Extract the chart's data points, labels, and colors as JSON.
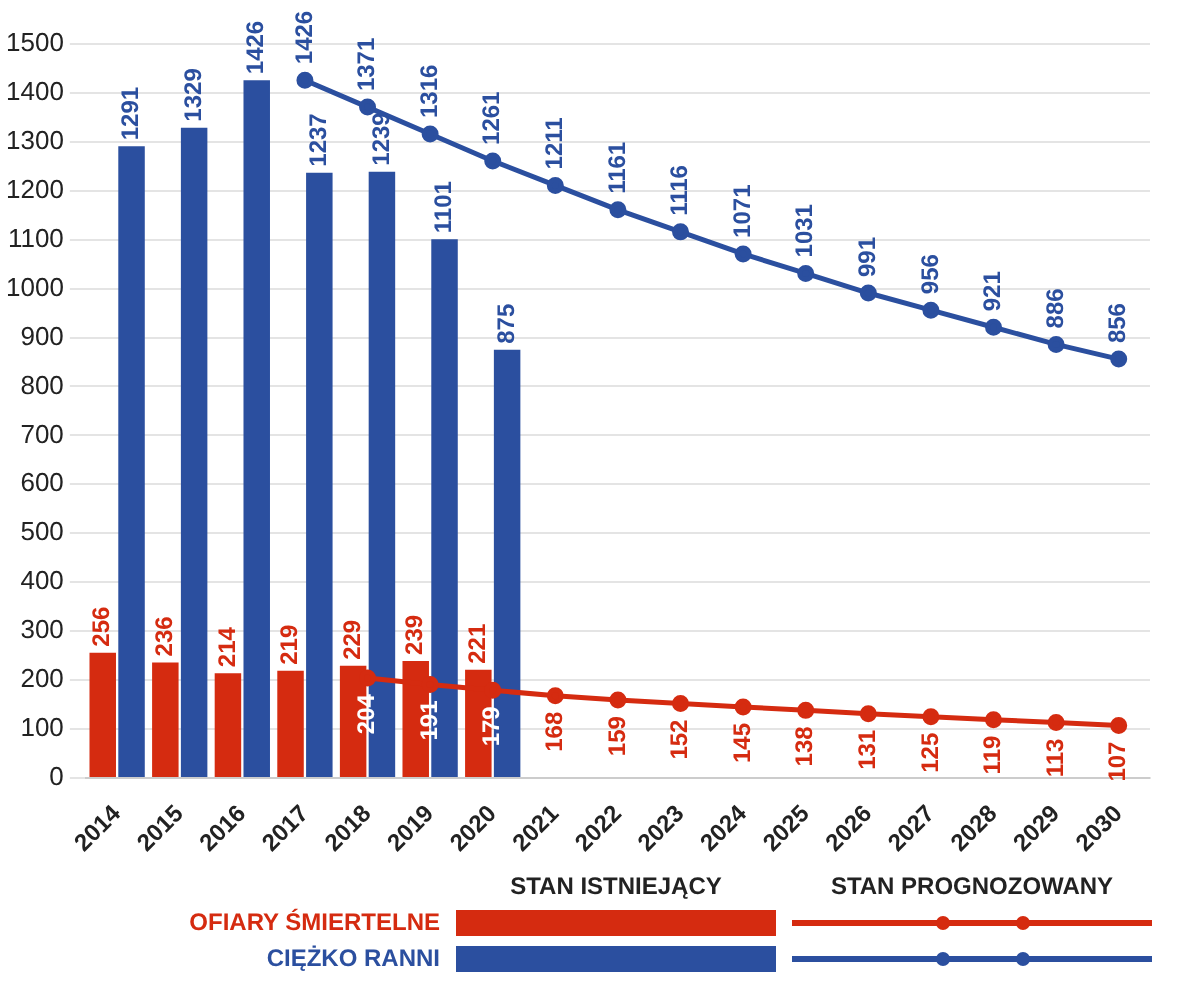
{
  "chart_data": {
    "type": "bar",
    "categories": [
      "2014",
      "2015",
      "2016",
      "2017",
      "2018",
      "2019",
      "2020",
      "2021",
      "2022",
      "2023",
      "2024",
      "2025",
      "2026",
      "2027",
      "2028",
      "2029",
      "2030"
    ],
    "series": [
      {
        "name": "OFIARY ŚMIERTELNE",
        "color": "#d52b10",
        "values": [
          256,
          236,
          214,
          219,
          229,
          239,
          221,
          null,
          null,
          null,
          null,
          null,
          null,
          null,
          null,
          null,
          null
        ]
      },
      {
        "name": "CIĘŻKO RANNI",
        "color": "#2b4f9f",
        "values": [
          1291,
          1329,
          1426,
          1237,
          1239,
          1101,
          875,
          null,
          null,
          null,
          null,
          null,
          null,
          null,
          null,
          null,
          null
        ]
      },
      {
        "type": "line",
        "color": "#d52b10",
        "values": [
          null,
          null,
          null,
          null,
          204,
          191,
          179,
          168,
          159,
          152,
          145,
          138,
          131,
          125,
          119,
          113,
          107
        ]
      },
      {
        "type": "line",
        "color": "#2b4f9f",
        "values": [
          null,
          null,
          null,
          1426,
          1371,
          1316,
          1261,
          1211,
          1161,
          1116,
          1071,
          1031,
          991,
          956,
          921,
          886,
          856
        ]
      }
    ],
    "ylim": [
      0,
      1500
    ],
    "yticks": [
      0,
      100,
      200,
      300,
      400,
      500,
      600,
      700,
      800,
      900,
      1000,
      1100,
      1200,
      1300,
      1400,
      1500
    ],
    "grid": "y",
    "data_labels": true,
    "marker": "circle",
    "line_style": "solid",
    "legend": "bottom",
    "annotations": [
      "STAN ISTNIEJĄCY",
      "STAN PROGNOZOWANY"
    ]
  }
}
